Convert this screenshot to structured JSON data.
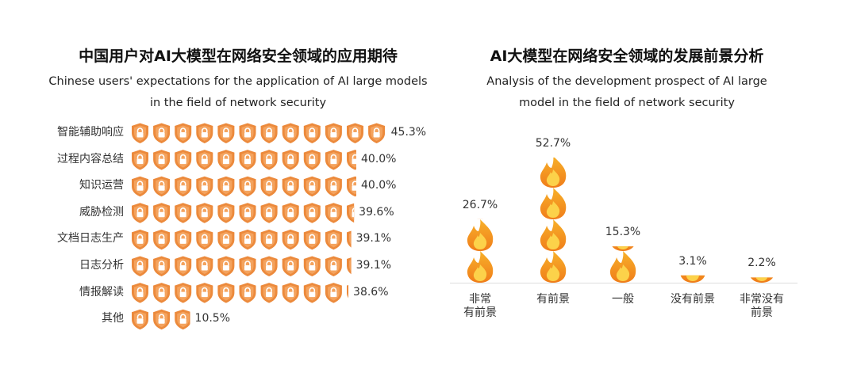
{
  "chart_data": [
    {
      "type": "pictogram-bar",
      "title": "中国用户对AI大模型在网络安全领域的应用期待",
      "subtitle": "Chinese users' expectations for the application of AI large models in the field of network security",
      "categories": [
        "智能辅助响应",
        "过程内容总结",
        "知识运营",
        "威胁检测",
        "文档日志生产",
        "日志分析",
        "情报解读",
        "其他"
      ],
      "values": [
        45.3,
        40.0,
        40.0,
        39.6,
        39.1,
        39.1,
        38.6,
        10.5
      ],
      "value_labels": [
        "45.3%",
        "40.0%",
        "40.0%",
        "39.6%",
        "39.1%",
        "39.1%",
        "38.6%",
        "10.5%"
      ],
      "color": "#ec8a3c"
    },
    {
      "type": "pictogram-column",
      "title": "AI大模型在网络安全领域的发展前景分析",
      "subtitle": "Analysis of the development prospect of AI large model in the field of network security",
      "categories": [
        "非常\n有前景",
        "有前景",
        "一般",
        "没有前景",
        "非常没有\n前景"
      ],
      "values": [
        26.7,
        52.7,
        15.3,
        3.1,
        2.2
      ],
      "value_labels": [
        "26.7%",
        "52.7%",
        "15.3%",
        "3.1%",
        "2.2%"
      ],
      "color": "#f39a1e"
    }
  ]
}
